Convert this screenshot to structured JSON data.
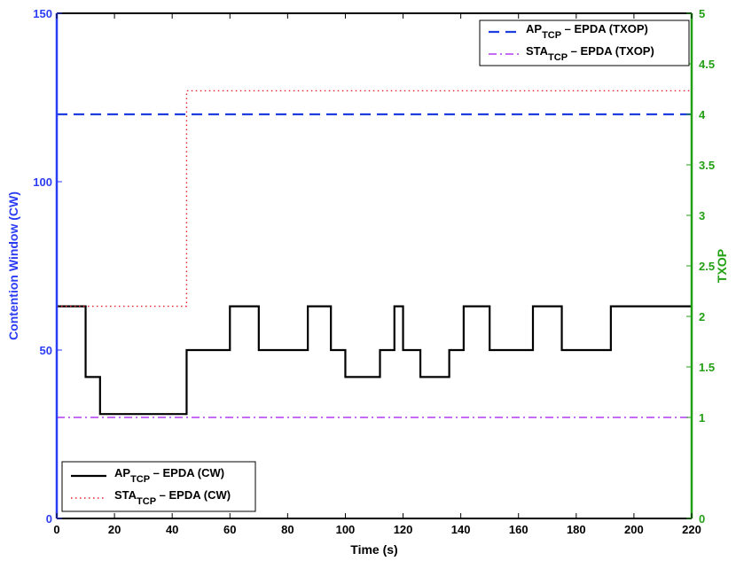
{
  "chart_data": {
    "type": "line",
    "xlabel": "Time (s)",
    "ylabel_left": "Contention Window (CW)",
    "ylabel_right": "TXOP",
    "xlim": [
      0,
      220
    ],
    "ylim_left": [
      0,
      150
    ],
    "ylim_right": [
      0,
      5
    ],
    "x_ticks": [
      "0",
      "20",
      "40",
      "60",
      "80",
      "100",
      "120",
      "140",
      "160",
      "180",
      "200",
      "220"
    ],
    "y_ticks_left": [
      "0",
      "50",
      "100",
      "150"
    ],
    "y_ticks_right": [
      "0",
      "1",
      "1.5",
      "2",
      "2.5",
      "3",
      "3.5",
      "4",
      "4.5",
      "5"
    ],
    "grid": false,
    "colors": {
      "left_axis": "#2b3cf5",
      "right_axis": "#22a014",
      "ap_cw": "#000000",
      "sta_cw": "#e8202a",
      "ap_txop": "#1f3ee0",
      "sta_txop": "#b33cf0"
    },
    "legend_cw": {
      "placement": "bottom-left",
      "entries": [
        {
          "main": "AP",
          "sub": "TCP",
          "rest": " – EPDA (CW)"
        },
        {
          "main": "STA",
          "sub": "TCP",
          "rest": " – EPDA (CW)"
        }
      ]
    },
    "legend_txop": {
      "placement": "top-right",
      "entries": [
        {
          "main": "AP",
          "sub": "TCP",
          "rest": " – EPDA (TXOP)"
        },
        {
          "main": "STA",
          "sub": "TCP",
          "rest": " – EPDA (TXOP)"
        }
      ]
    },
    "series": [
      {
        "key": "ap_cw",
        "axis": "left",
        "style": "solid",
        "x": [
          0,
          10,
          10,
          15,
          15,
          45,
          45,
          60,
          60,
          70,
          70,
          87,
          87,
          95,
          95,
          100,
          100,
          112,
          112,
          117,
          117,
          120,
          120,
          126,
          126,
          136,
          136,
          141,
          141,
          150,
          150,
          165,
          165,
          175,
          175,
          192,
          192,
          220
        ],
        "y": [
          63,
          63,
          42,
          42,
          31,
          31,
          50,
          50,
          63,
          63,
          50,
          50,
          63,
          63,
          50,
          50,
          42,
          42,
          50,
          50,
          63,
          63,
          50,
          50,
          42,
          42,
          50,
          50,
          63,
          63,
          50,
          50,
          63,
          63,
          50,
          50,
          63,
          63
        ]
      },
      {
        "key": "sta_cw",
        "axis": "left",
        "style": "dotted",
        "x": [
          0,
          45,
          45,
          220
        ],
        "y": [
          63,
          63,
          127,
          127
        ]
      },
      {
        "key": "ap_txop",
        "axis": "right",
        "style": "dashed",
        "x": [
          0,
          220
        ],
        "y": [
          4,
          4
        ]
      },
      {
        "key": "sta_txop",
        "axis": "right",
        "style": "dashdot",
        "x": [
          0,
          220
        ],
        "y": [
          1,
          1
        ]
      }
    ]
  }
}
